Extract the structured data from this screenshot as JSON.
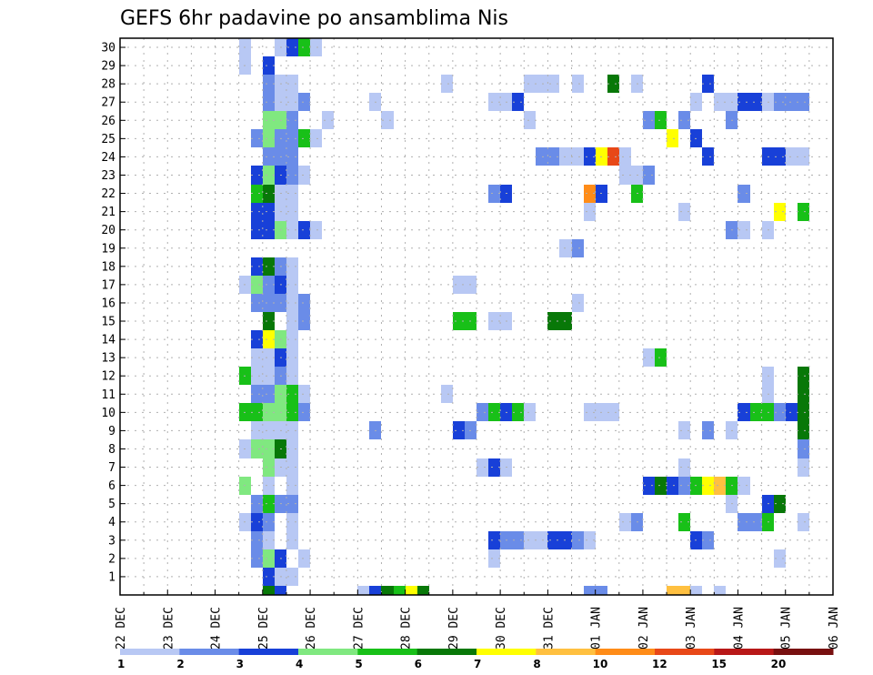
{
  "chart_data": {
    "type": "heatmap",
    "title": "GEFS 6hr padavine po ansamblima Nis",
    "xlabel": "",
    "ylabel": "",
    "x_tick_labels": [
      "22 DEC",
      "23 DEC",
      "24 DEC",
      "25 DEC",
      "26 DEC",
      "27 DEC",
      "28 DEC",
      "29 DEC",
      "30 DEC",
      "31 DEC",
      "01 JAN",
      "02 JAN",
      "03 JAN",
      "04 JAN",
      "05 JAN",
      "06 JAN"
    ],
    "x_range_days": [
      0,
      15
    ],
    "y_tick_labels": [
      "1",
      "2",
      "3",
      "4",
      "5",
      "6",
      "7",
      "8",
      "9",
      "10",
      "11",
      "12",
      "13",
      "14",
      "15",
      "16",
      "17",
      "18",
      "19",
      "20",
      "21",
      "22",
      "23",
      "24",
      "25",
      "26",
      "27",
      "28",
      "29",
      "30"
    ],
    "y_range": [
      0,
      30
    ],
    "cell_width_days": 0.25,
    "legend": {
      "labels": [
        "1",
        "2",
        "3",
        "4",
        "5",
        "6",
        "7",
        "8",
        "10",
        "12",
        "15",
        "20"
      ],
      "colors": [
        "#b8c8f4",
        "#6a8ce8",
        "#1840d8",
        "#80e880",
        "#18c018",
        "#087808",
        "#ffff00",
        "#ffc040",
        "#ff8c18",
        "#e84818",
        "#b81818",
        "#781010"
      ]
    },
    "cells": [
      {
        "t": 2.5,
        "m": 4,
        "v": 1
      },
      {
        "t": 2.5,
        "m": 8,
        "v": 1
      },
      {
        "t": 2.5,
        "m": 10,
        "v": 5
      },
      {
        "t": 2.5,
        "m": 12,
        "v": 5
      },
      {
        "t": 2.5,
        "m": 6,
        "v": 4
      },
      {
        "t": 2.5,
        "m": 17,
        "v": 1
      },
      {
        "t": 2.5,
        "m": 29,
        "v": 1
      },
      {
        "t": 2.5,
        "m": 30,
        "v": 1
      },
      {
        "t": 2.75,
        "m": 2,
        "v": 2
      },
      {
        "t": 2.75,
        "m": 3,
        "v": 2
      },
      {
        "t": 2.75,
        "m": 4,
        "v": 3
      },
      {
        "t": 2.75,
        "m": 5,
        "v": 2
      },
      {
        "t": 2.75,
        "m": 8,
        "v": 4
      },
      {
        "t": 2.75,
        "m": 9,
        "v": 1
      },
      {
        "t": 2.75,
        "m": 10,
        "v": 5
      },
      {
        "t": 2.75,
        "m": 11,
        "v": 2
      },
      {
        "t": 2.75,
        "m": 12,
        "v": 1
      },
      {
        "t": 2.75,
        "m": 13,
        "v": 1
      },
      {
        "t": 2.75,
        "m": 14,
        "v": 3
      },
      {
        "t": 2.75,
        "m": 16,
        "v": 2
      },
      {
        "t": 2.75,
        "m": 17,
        "v": 4
      },
      {
        "t": 2.75,
        "m": 18,
        "v": 3
      },
      {
        "t": 2.75,
        "m": 20,
        "v": 3
      },
      {
        "t": 2.75,
        "m": 21,
        "v": 3
      },
      {
        "t": 2.75,
        "m": 22,
        "v": 5
      },
      {
        "t": 2.75,
        "m": 23,
        "v": 3
      },
      {
        "t": 2.75,
        "m": 25,
        "v": 2
      },
      {
        "t": 3.0,
        "m": 0,
        "v": 6
      },
      {
        "t": 3.0,
        "m": 1,
        "v": 3
      },
      {
        "t": 3.0,
        "m": 2,
        "v": 4
      },
      {
        "t": 3.0,
        "m": 3,
        "v": 1
      },
      {
        "t": 3.0,
        "m": 4,
        "v": 2
      },
      {
        "t": 3.0,
        "m": 5,
        "v": 5
      },
      {
        "t": 3.0,
        "m": 6,
        "v": 1
      },
      {
        "t": 3.0,
        "m": 7,
        "v": 4
      },
      {
        "t": 3.0,
        "m": 8,
        "v": 4
      },
      {
        "t": 3.0,
        "m": 9,
        "v": 1
      },
      {
        "t": 3.0,
        "m": 10,
        "v": 4
      },
      {
        "t": 3.0,
        "m": 11,
        "v": 2
      },
      {
        "t": 3.0,
        "m": 12,
        "v": 1
      },
      {
        "t": 3.0,
        "m": 13,
        "v": 1
      },
      {
        "t": 3.0,
        "m": 14,
        "v": 7
      },
      {
        "t": 3.0,
        "m": 15,
        "v": 6
      },
      {
        "t": 3.0,
        "m": 16,
        "v": 2
      },
      {
        "t": 3.0,
        "m": 17,
        "v": 2
      },
      {
        "t": 3.0,
        "m": 18,
        "v": 6
      },
      {
        "t": 3.0,
        "m": 20,
        "v": 3
      },
      {
        "t": 3.0,
        "m": 21,
        "v": 3
      },
      {
        "t": 3.0,
        "m": 22,
        "v": 6
      },
      {
        "t": 3.0,
        "m": 23,
        "v": 4
      },
      {
        "t": 3.0,
        "m": 24,
        "v": 2
      },
      {
        "t": 3.0,
        "m": 25,
        "v": 4
      },
      {
        "t": 3.0,
        "m": 26,
        "v": 4
      },
      {
        "t": 3.0,
        "m": 27,
        "v": 2
      },
      {
        "t": 3.0,
        "m": 28,
        "v": 2
      },
      {
        "t": 3.0,
        "m": 29,
        "v": 3
      },
      {
        "t": 3.25,
        "m": 0,
        "v": 3
      },
      {
        "t": 3.25,
        "m": 1,
        "v": 1
      },
      {
        "t": 3.25,
        "m": 2,
        "v": 3
      },
      {
        "t": 3.25,
        "m": 5,
        "v": 2
      },
      {
        "t": 3.25,
        "m": 7,
        "v": 1
      },
      {
        "t": 3.25,
        "m": 8,
        "v": 6
      },
      {
        "t": 3.25,
        "m": 9,
        "v": 1
      },
      {
        "t": 3.25,
        "m": 10,
        "v": 4
      },
      {
        "t": 3.25,
        "m": 11,
        "v": 4
      },
      {
        "t": 3.25,
        "m": 12,
        "v": 2
      },
      {
        "t": 3.25,
        "m": 13,
        "v": 3
      },
      {
        "t": 3.25,
        "m": 14,
        "v": 4
      },
      {
        "t": 3.25,
        "m": 16,
        "v": 2
      },
      {
        "t": 3.25,
        "m": 17,
        "v": 3
      },
      {
        "t": 3.25,
        "m": 18,
        "v": 2
      },
      {
        "t": 3.25,
        "m": 20,
        "v": 4
      },
      {
        "t": 3.25,
        "m": 21,
        "v": 1
      },
      {
        "t": 3.25,
        "m": 22,
        "v": 1
      },
      {
        "t": 3.25,
        "m": 23,
        "v": 3
      },
      {
        "t": 3.25,
        "m": 24,
        "v": 2
      },
      {
        "t": 3.25,
        "m": 25,
        "v": 2
      },
      {
        "t": 3.25,
        "m": 26,
        "v": 4
      },
      {
        "t": 3.25,
        "m": 27,
        "v": 1
      },
      {
        "t": 3.25,
        "m": 28,
        "v": 1
      },
      {
        "t": 3.25,
        "m": 30,
        "v": 1
      },
      {
        "t": 3.5,
        "m": 1,
        "v": 1
      },
      {
        "t": 3.5,
        "m": 3,
        "v": 1
      },
      {
        "t": 3.5,
        "m": 4,
        "v": 1
      },
      {
        "t": 3.5,
        "m": 5,
        "v": 2
      },
      {
        "t": 3.5,
        "m": 6,
        "v": 1
      },
      {
        "t": 3.5,
        "m": 7,
        "v": 1
      },
      {
        "t": 3.5,
        "m": 8,
        "v": 1
      },
      {
        "t": 3.5,
        "m": 9,
        "v": 1
      },
      {
        "t": 3.5,
        "m": 10,
        "v": 5
      },
      {
        "t": 3.5,
        "m": 11,
        "v": 5
      },
      {
        "t": 3.5,
        "m": 12,
        "v": 1
      },
      {
        "t": 3.5,
        "m": 13,
        "v": 1
      },
      {
        "t": 3.5,
        "m": 14,
        "v": 1
      },
      {
        "t": 3.5,
        "m": 15,
        "v": 1
      },
      {
        "t": 3.5,
        "m": 16,
        "v": 1
      },
      {
        "t": 3.5,
        "m": 17,
        "v": 1
      },
      {
        "t": 3.5,
        "m": 18,
        "v": 1
      },
      {
        "t": 3.5,
        "m": 20,
        "v": 1
      },
      {
        "t": 3.5,
        "m": 21,
        "v": 1
      },
      {
        "t": 3.5,
        "m": 22,
        "v": 1
      },
      {
        "t": 3.5,
        "m": 23,
        "v": 2
      },
      {
        "t": 3.5,
        "m": 24,
        "v": 2
      },
      {
        "t": 3.5,
        "m": 25,
        "v": 2
      },
      {
        "t": 3.5,
        "m": 26,
        "v": 2
      },
      {
        "t": 3.5,
        "m": 27,
        "v": 1
      },
      {
        "t": 3.5,
        "m": 28,
        "v": 1
      },
      {
        "t": 3.5,
        "m": 30,
        "v": 3
      },
      {
        "t": 3.75,
        "m": 2,
        "v": 1
      },
      {
        "t": 3.75,
        "m": 10,
        "v": 2
      },
      {
        "t": 3.75,
        "m": 11,
        "v": 1
      },
      {
        "t": 3.75,
        "m": 15,
        "v": 2
      },
      {
        "t": 3.75,
        "m": 16,
        "v": 2
      },
      {
        "t": 3.75,
        "m": 20,
        "v": 3
      },
      {
        "t": 3.75,
        "m": 23,
        "v": 1
      },
      {
        "t": 3.75,
        "m": 25,
        "v": 5
      },
      {
        "t": 3.75,
        "m": 27,
        "v": 2
      },
      {
        "t": 3.75,
        "m": 30,
        "v": 5
      },
      {
        "t": 4.0,
        "m": 20,
        "v": 1
      },
      {
        "t": 4.0,
        "m": 25,
        "v": 1
      },
      {
        "t": 4.0,
        "m": 30,
        "v": 1
      },
      {
        "t": 4.25,
        "m": 26,
        "v": 1
      },
      {
        "t": 5.0,
        "m": 0,
        "v": 1
      },
      {
        "t": 5.25,
        "m": 0,
        "v": 3
      },
      {
        "t": 5.25,
        "m": 9,
        "v": 2
      },
      {
        "t": 5.25,
        "m": 27,
        "v": 1
      },
      {
        "t": 5.5,
        "m": 0,
        "v": 6
      },
      {
        "t": 5.5,
        "m": 26,
        "v": 1
      },
      {
        "t": 5.75,
        "m": 0,
        "v": 5
      },
      {
        "t": 6.0,
        "m": 0,
        "v": 7
      },
      {
        "t": 6.25,
        "m": 0,
        "v": 6
      },
      {
        "t": 6.75,
        "m": 11,
        "v": 1
      },
      {
        "t": 6.75,
        "m": 28,
        "v": 1
      },
      {
        "t": 7.0,
        "m": 9,
        "v": 3
      },
      {
        "t": 7.0,
        "m": 15,
        "v": 5
      },
      {
        "t": 7.0,
        "m": 17,
        "v": 1
      },
      {
        "t": 7.25,
        "m": 9,
        "v": 2
      },
      {
        "t": 7.25,
        "m": 15,
        "v": 5
      },
      {
        "t": 7.25,
        "m": 17,
        "v": 1
      },
      {
        "t": 7.5,
        "m": 10,
        "v": 2
      },
      {
        "t": 7.5,
        "m": 7,
        "v": 1
      },
      {
        "t": 7.75,
        "m": 2,
        "v": 1
      },
      {
        "t": 7.75,
        "m": 3,
        "v": 3
      },
      {
        "t": 7.75,
        "m": 7,
        "v": 3
      },
      {
        "t": 7.75,
        "m": 10,
        "v": 5
      },
      {
        "t": 7.75,
        "m": 15,
        "v": 1
      },
      {
        "t": 7.75,
        "m": 22,
        "v": 2
      },
      {
        "t": 7.75,
        "m": 27,
        "v": 1
      },
      {
        "t": 8.0,
        "m": 3,
        "v": 2
      },
      {
        "t": 8.0,
        "m": 7,
        "v": 1
      },
      {
        "t": 8.0,
        "m": 10,
        "v": 3
      },
      {
        "t": 8.0,
        "m": 15,
        "v": 1
      },
      {
        "t": 8.0,
        "m": 22,
        "v": 3
      },
      {
        "t": 8.0,
        "m": 27,
        "v": 1
      },
      {
        "t": 8.25,
        "m": 3,
        "v": 2
      },
      {
        "t": 8.25,
        "m": 10,
        "v": 5
      },
      {
        "t": 8.25,
        "m": 27,
        "v": 3
      },
      {
        "t": 8.5,
        "m": 3,
        "v": 1
      },
      {
        "t": 8.5,
        "m": 10,
        "v": 1
      },
      {
        "t": 8.5,
        "m": 26,
        "v": 1
      },
      {
        "t": 8.5,
        "m": 28,
        "v": 1
      },
      {
        "t": 8.75,
        "m": 3,
        "v": 1
      },
      {
        "t": 8.75,
        "m": 24,
        "v": 2
      },
      {
        "t": 8.75,
        "m": 28,
        "v": 1
      },
      {
        "t": 9.0,
        "m": 3,
        "v": 3
      },
      {
        "t": 9.0,
        "m": 15,
        "v": 6
      },
      {
        "t": 9.0,
        "m": 24,
        "v": 2
      },
      {
        "t": 9.0,
        "m": 28,
        "v": 1
      },
      {
        "t": 9.25,
        "m": 3,
        "v": 3
      },
      {
        "t": 9.25,
        "m": 15,
        "v": 6
      },
      {
        "t": 9.25,
        "m": 19,
        "v": 1
      },
      {
        "t": 9.25,
        "m": 24,
        "v": 1
      },
      {
        "t": 9.5,
        "m": 3,
        "v": 2
      },
      {
        "t": 9.5,
        "m": 16,
        "v": 1
      },
      {
        "t": 9.5,
        "m": 19,
        "v": 2
      },
      {
        "t": 9.5,
        "m": 24,
        "v": 1
      },
      {
        "t": 9.5,
        "m": 28,
        "v": 1
      },
      {
        "t": 9.75,
        "m": 0,
        "v": 2
      },
      {
        "t": 9.75,
        "m": 3,
        "v": 1
      },
      {
        "t": 9.75,
        "m": 10,
        "v": 1
      },
      {
        "t": 9.75,
        "m": 21,
        "v": 1
      },
      {
        "t": 9.75,
        "m": 22,
        "v": 10
      },
      {
        "t": 9.75,
        "m": 24,
        "v": 3
      },
      {
        "t": 10.0,
        "m": 0,
        "v": 2
      },
      {
        "t": 10.0,
        "m": 10,
        "v": 1
      },
      {
        "t": 10.0,
        "m": 22,
        "v": 3
      },
      {
        "t": 10.0,
        "m": 24,
        "v": 7
      },
      {
        "t": 10.25,
        "m": 10,
        "v": 1
      },
      {
        "t": 10.25,
        "m": 24,
        "v": 12
      },
      {
        "t": 10.25,
        "m": 28,
        "v": 6
      },
      {
        "t": 10.5,
        "m": 4,
        "v": 1
      },
      {
        "t": 10.5,
        "m": 23,
        "v": 1
      },
      {
        "t": 10.5,
        "m": 24,
        "v": 1
      },
      {
        "t": 10.75,
        "m": 4,
        "v": 2
      },
      {
        "t": 10.75,
        "m": 22,
        "v": 5
      },
      {
        "t": 10.75,
        "m": 23,
        "v": 1
      },
      {
        "t": 10.75,
        "m": 28,
        "v": 1
      },
      {
        "t": 11.0,
        "m": 6,
        "v": 3
      },
      {
        "t": 11.0,
        "m": 13,
        "v": 1
      },
      {
        "t": 11.0,
        "m": 23,
        "v": 2
      },
      {
        "t": 11.0,
        "m": 26,
        "v": 2
      },
      {
        "t": 11.25,
        "m": 6,
        "v": 6
      },
      {
        "t": 11.25,
        "m": 13,
        "v": 5
      },
      {
        "t": 11.25,
        "m": 26,
        "v": 5
      },
      {
        "t": 11.5,
        "m": 6,
        "v": 3
      },
      {
        "t": 11.5,
        "m": 0,
        "v": 8
      },
      {
        "t": 11.5,
        "m": 25,
        "v": 7
      },
      {
        "t": 11.75,
        "m": 0,
        "v": 8
      },
      {
        "t": 11.75,
        "m": 4,
        "v": 5
      },
      {
        "t": 11.75,
        "m": 6,
        "v": 2
      },
      {
        "t": 11.75,
        "m": 7,
        "v": 1
      },
      {
        "t": 11.75,
        "m": 9,
        "v": 1
      },
      {
        "t": 11.75,
        "m": 21,
        "v": 1
      },
      {
        "t": 11.75,
        "m": 26,
        "v": 2
      },
      {
        "t": 12.0,
        "m": 3,
        "v": 3
      },
      {
        "t": 12.0,
        "m": 6,
        "v": 5
      },
      {
        "t": 12.0,
        "m": 0,
        "v": 1
      },
      {
        "t": 12.0,
        "m": 25,
        "v": 3
      },
      {
        "t": 12.0,
        "m": 27,
        "v": 1
      },
      {
        "t": 12.25,
        "m": 3,
        "v": 2
      },
      {
        "t": 12.25,
        "m": 6,
        "v": 7
      },
      {
        "t": 12.25,
        "m": 9,
        "v": 2
      },
      {
        "t": 12.25,
        "m": 24,
        "v": 3
      },
      {
        "t": 12.25,
        "m": 28,
        "v": 3
      },
      {
        "t": 12.5,
        "m": 0,
        "v": 1
      },
      {
        "t": 12.5,
        "m": 6,
        "v": 8
      },
      {
        "t": 12.5,
        "m": 27,
        "v": 1
      },
      {
        "t": 12.75,
        "m": 5,
        "v": 1
      },
      {
        "t": 12.75,
        "m": 6,
        "v": 5
      },
      {
        "t": 12.75,
        "m": 9,
        "v": 1
      },
      {
        "t": 12.75,
        "m": 20,
        "v": 2
      },
      {
        "t": 12.75,
        "m": 26,
        "v": 2
      },
      {
        "t": 12.75,
        "m": 27,
        "v": 1
      },
      {
        "t": 13.0,
        "m": 4,
        "v": 2
      },
      {
        "t": 13.0,
        "m": 6,
        "v": 1
      },
      {
        "t": 13.0,
        "m": 10,
        "v": 3
      },
      {
        "t": 13.0,
        "m": 20,
        "v": 1
      },
      {
        "t": 13.0,
        "m": 22,
        "v": 2
      },
      {
        "t": 13.0,
        "m": 27,
        "v": 3
      },
      {
        "t": 13.25,
        "m": 4,
        "v": 2
      },
      {
        "t": 13.25,
        "m": 10,
        "v": 5
      },
      {
        "t": 13.25,
        "m": 27,
        "v": 3
      },
      {
        "t": 13.5,
        "m": 4,
        "v": 5
      },
      {
        "t": 13.5,
        "m": 5,
        "v": 3
      },
      {
        "t": 13.5,
        "m": 10,
        "v": 5
      },
      {
        "t": 13.5,
        "m": 11,
        "v": 1
      },
      {
        "t": 13.5,
        "m": 12,
        "v": 1
      },
      {
        "t": 13.5,
        "m": 20,
        "v": 1
      },
      {
        "t": 13.5,
        "m": 24,
        "v": 3
      },
      {
        "t": 13.5,
        "m": 27,
        "v": 1
      },
      {
        "t": 13.75,
        "m": 2,
        "v": 1
      },
      {
        "t": 13.75,
        "m": 5,
        "v": 6
      },
      {
        "t": 13.75,
        "m": 10,
        "v": 2
      },
      {
        "t": 13.75,
        "m": 21,
        "v": 7
      },
      {
        "t": 13.75,
        "m": 24,
        "v": 3
      },
      {
        "t": 13.75,
        "m": 27,
        "v": 2
      },
      {
        "t": 14.0,
        "m": 10,
        "v": 3
      },
      {
        "t": 14.0,
        "m": 24,
        "v": 1
      },
      {
        "t": 14.0,
        "m": 27,
        "v": 2
      },
      {
        "t": 14.25,
        "m": 8,
        "v": 2
      },
      {
        "t": 14.25,
        "m": 7,
        "v": 1
      },
      {
        "t": 14.25,
        "m": 4,
        "v": 1
      },
      {
        "t": 14.25,
        "m": 9,
        "v": 6
      },
      {
        "t": 14.25,
        "m": 10,
        "v": 6
      },
      {
        "t": 14.25,
        "m": 11,
        "v": 6
      },
      {
        "t": 14.25,
        "m": 12,
        "v": 6
      },
      {
        "t": 14.25,
        "m": 21,
        "v": 5
      },
      {
        "t": 14.25,
        "m": 24,
        "v": 1
      },
      {
        "t": 14.25,
        "m": 27,
        "v": 2
      }
    ]
  }
}
